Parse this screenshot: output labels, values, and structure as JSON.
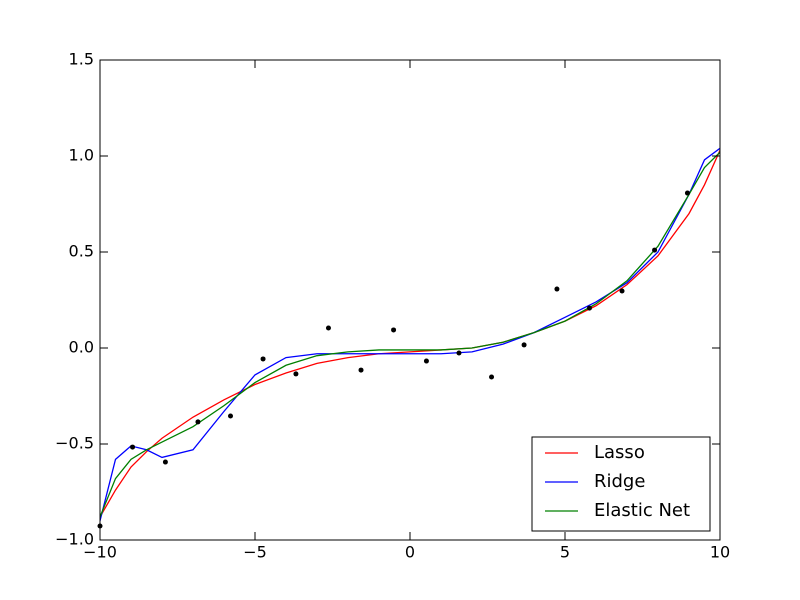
{
  "chart_data": {
    "type": "line",
    "x": [
      -10,
      -9.5,
      -9,
      -8.5,
      -8,
      -7,
      -6,
      -5,
      -4,
      -3,
      -2,
      -1,
      0,
      1,
      2,
      3,
      4,
      5,
      6,
      7,
      8,
      9,
      9.5,
      10
    ],
    "series": [
      {
        "name": "Lasso",
        "color": "#ff0000",
        "values": [
          -0.88,
          -0.74,
          -0.62,
          -0.54,
          -0.47,
          -0.36,
          -0.27,
          -0.19,
          -0.13,
          -0.08,
          -0.05,
          -0.03,
          -0.02,
          -0.01,
          0.0,
          0.03,
          0.08,
          0.14,
          0.22,
          0.33,
          0.48,
          0.7,
          0.85,
          1.03
        ]
      },
      {
        "name": "Ridge",
        "color": "#0000ff",
        "values": [
          -0.9,
          -0.58,
          -0.51,
          -0.53,
          -0.57,
          -0.53,
          -0.33,
          -0.14,
          -0.05,
          -0.03,
          -0.03,
          -0.03,
          -0.03,
          -0.03,
          -0.02,
          0.02,
          0.08,
          0.16,
          0.24,
          0.34,
          0.5,
          0.8,
          0.98,
          1.04
        ]
      },
      {
        "name": "Elastic Net",
        "color": "#008000",
        "values": [
          -0.88,
          -0.68,
          -0.58,
          -0.53,
          -0.49,
          -0.41,
          -0.3,
          -0.18,
          -0.09,
          -0.04,
          -0.02,
          -0.01,
          -0.01,
          -0.01,
          0.0,
          0.03,
          0.08,
          0.14,
          0.23,
          0.35,
          0.53,
          0.8,
          0.94,
          1.02
        ]
      }
    ],
    "points": {
      "color": "#000000",
      "x": [
        -10,
        -8.95,
        -7.89,
        -6.84,
        -5.79,
        -4.74,
        -3.68,
        -2.63,
        -1.58,
        -0.53,
        0.53,
        1.58,
        2.63,
        3.68,
        4.74,
        5.79,
        6.84,
        7.89,
        8.95
      ],
      "y": [
        -0.927,
        -0.516,
        -0.594,
        -0.385,
        -0.354,
        -0.057,
        -0.135,
        0.104,
        -0.115,
        0.094,
        -0.068,
        -0.026,
        -0.151,
        0.016,
        0.307,
        0.208,
        0.297,
        0.51,
        0.807
      ]
    },
    "xlim": [
      -10,
      10
    ],
    "ylim": [
      -1,
      1.5
    ],
    "xticks": [
      {
        "value": -10,
        "label": "−10"
      },
      {
        "value": -5,
        "label": "−5"
      },
      0,
      5,
      10
    ],
    "yticks": [
      {
        "value": -1,
        "label": "−1.0"
      },
      {
        "value": -0.5,
        "label": "−0.5"
      },
      {
        "value": 0,
        "label": "0.0"
      },
      {
        "value": 0.5,
        "label": "0.5"
      },
      {
        "value": 1,
        "label": "1.0"
      },
      {
        "value": 1.5,
        "label": "1.5"
      }
    ],
    "legend": "lower right"
  }
}
